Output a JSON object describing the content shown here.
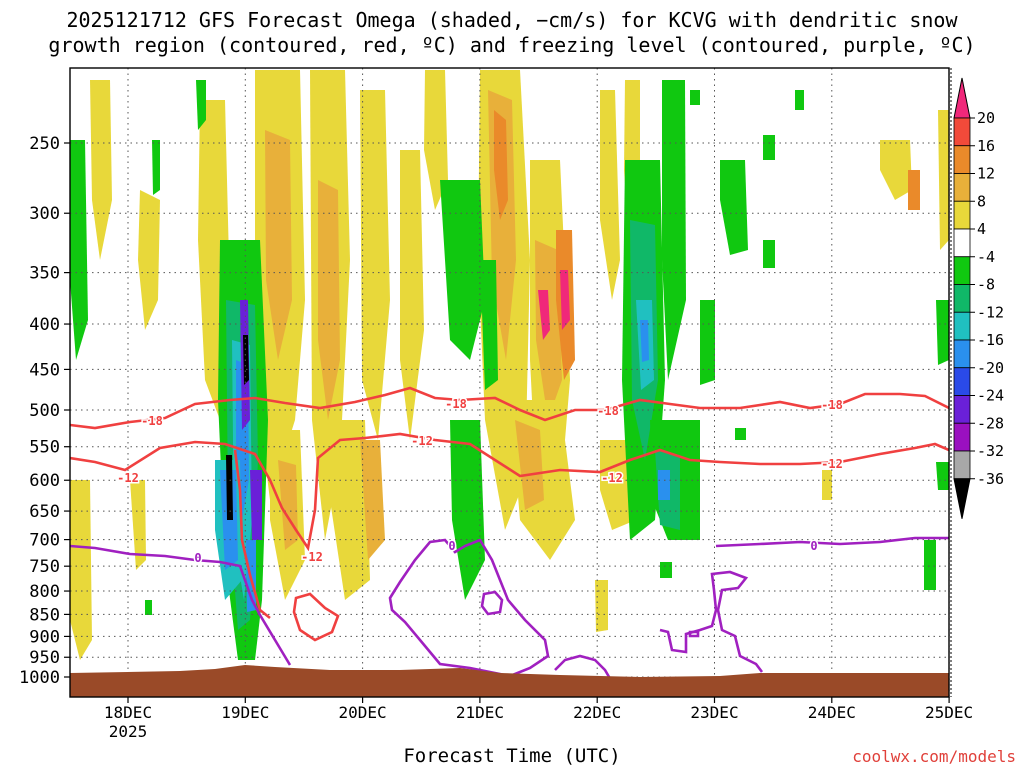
{
  "title_line1": "2025121712 GFS Forecast Omega (shaded, −cm/s) for KCVG with dendritic snow",
  "title_line2": "growth region (contoured, red, ºC) and freezing level (contoured, purple, ºC)",
  "xlabel": "Forecast Time (UTC)",
  "credit": "coolwx.com/models",
  "chart_data": {
    "type": "heatmap",
    "title": "2025121712 GFS Forecast Omega (shaded, −cm/s) for KCVG with dendritic snow growth region (contoured, red, ºC) and freezing level (contoured, purple, ºC)",
    "xlabel": "Forecast Time (UTC)",
    "ylabel": "",
    "x_ticks": [
      "18DEC",
      "19DEC",
      "20DEC",
      "21DEC",
      "22DEC",
      "23DEC",
      "24DEC",
      "25DEC"
    ],
    "x_tick_sublabel": "2025",
    "y_ticks": [
      250,
      300,
      350,
      400,
      450,
      500,
      550,
      600,
      650,
      700,
      750,
      800,
      850,
      900,
      950,
      1000
    ],
    "y_scale": "log-pressure",
    "grid": true,
    "colorbar": {
      "labels": [
        20,
        16,
        12,
        8,
        4,
        -4,
        -8,
        -12,
        -16,
        -20,
        -24,
        -28,
        -32,
        -36
      ],
      "colors": [
        "#f0287a",
        "#f24a3a",
        "#ea8a2a",
        "#e8b03a",
        "#e8d83a",
        "#ffffff",
        "#10c810",
        "#10b868",
        "#20c0c0",
        "#2a90ee",
        "#2a4ae8",
        "#6a20d8",
        "#9a10c0",
        "#a8a8a8",
        "#000000"
      ]
    },
    "contours": {
      "dendritic_growth": {
        "color": "#f04040",
        "levels": [
          -12,
          -18
        ]
      },
      "freezing_level": {
        "color": "#a020c0",
        "levels": [
          0
        ]
      }
    },
    "contour_labels": [
      {
        "text": "-18",
        "color": "#f04040"
      },
      {
        "text": "-12",
        "color": "#f04040"
      },
      {
        "text": "-18",
        "color": "#f04040"
      },
      {
        "text": "-12",
        "color": "#f04040"
      },
      {
        "text": "-18",
        "color": "#f04040"
      },
      {
        "text": "-12",
        "color": "#f04040"
      },
      {
        "text": "-18",
        "color": "#f04040"
      },
      {
        "text": "-12",
        "color": "#f04040"
      },
      {
        "text": "-12",
        "color": "#f04040"
      },
      {
        "text": "0",
        "color": "#a020c0"
      },
      {
        "text": "0",
        "color": "#a020c0"
      },
      {
        "text": "0",
        "color": "#a020c0"
      }
    ],
    "terrain_color": "#9a4a28"
  }
}
